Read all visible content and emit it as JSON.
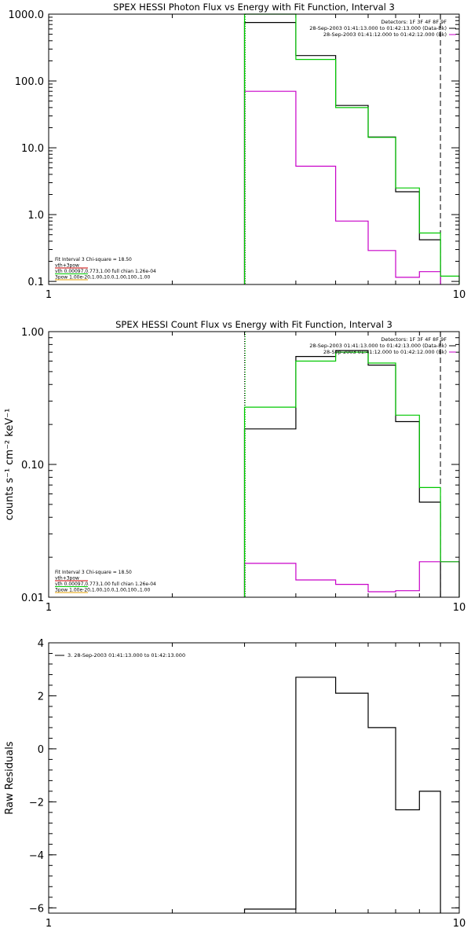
{
  "colors": {
    "black": "#000000",
    "green": "#00c800",
    "magenta": "#c800c8",
    "orange": "#e6a000",
    "red": "#c80000"
  },
  "chart_data": [
    {
      "type": "line",
      "title": "SPEX HESSI Photon Flux vs Energy with Fit Function, Interval 3",
      "xlabel": "",
      "ylabel": "",
      "xscale": "log",
      "yscale": "log",
      "xlim": [
        1,
        10
      ],
      "ylim": [
        0.09,
        1000
      ],
      "x_ticks": [
        "1",
        "10"
      ],
      "y_ticks": [
        {
          "v": 0.1,
          "label": "0.1"
        },
        {
          "v": 1,
          "label": "1.0"
        },
        {
          "v": 10,
          "label": "10.0"
        },
        {
          "v": 100,
          "label": "100.0"
        },
        {
          "v": 1000,
          "label": "1000.0"
        }
      ],
      "vlines": [
        {
          "x": 3.0,
          "style": "dotted",
          "color": "#000000"
        },
        {
          "x": 3.0,
          "style": "dotted",
          "color": "#00c800"
        },
        {
          "x": 9.0,
          "style": "dashed",
          "color": "#000000"
        }
      ],
      "info_lines": [
        "Detectors: 1F 3F 4F 8F 9F",
        "28-Sep-2003 01:41:13.000 to 01:42:13.000 (Data-Bk)",
        "28-Sep-2003 01:41:12.000 to 01:42:12.000 (Bk)"
      ],
      "fit_lines": [
        {
          "text": "Fit Interval 3   Chi-square = 18.50",
          "color": "#000000"
        },
        {
          "text": "vth+3pow",
          "color": "#c80000"
        },
        {
          "text": "vth 0.00097,0.773,1.00  full chian 1.26e-04",
          "color": "#00c800"
        },
        {
          "text": "3pow 1.00e-20,1.00,10.0,1.00,100.,1.00",
          "color": "#e6a000"
        }
      ],
      "series": [
        {
          "name": "Data-Bk",
          "color": "#000000",
          "edges": [
            3,
            4,
            5,
            6,
            7,
            8,
            9
          ],
          "values": [
            750,
            240,
            43,
            14.5,
            2.2,
            0.42
          ]
        },
        {
          "name": "Bk",
          "color": "#c800c8",
          "edges": [
            3,
            4,
            5,
            6,
            7,
            8,
            9
          ],
          "values": [
            70,
            5.3,
            0.8,
            0.29,
            0.115,
            0.14
          ]
        },
        {
          "name": "vth",
          "color": "#00c800",
          "edges": [
            3,
            4,
            5,
            6,
            7,
            8,
            9,
            10
          ],
          "values": [
            1200,
            210,
            40,
            14.3,
            2.5,
            0.53,
            0.12
          ]
        }
      ]
    },
    {
      "type": "line",
      "title": "SPEX HESSI Count Flux vs Energy with Fit Function, Interval 3",
      "xlabel": "",
      "ylabel": "counts s⁻¹ cm⁻² keV⁻¹",
      "xscale": "log",
      "yscale": "log",
      "xlim": [
        1,
        10
      ],
      "ylim": [
        0.01,
        1.0
      ],
      "x_ticks": [
        "1",
        "10"
      ],
      "y_ticks": [
        {
          "v": 0.01,
          "label": "0.01"
        },
        {
          "v": 0.1,
          "label": "0.10"
        },
        {
          "v": 1.0,
          "label": "1.00"
        }
      ],
      "vlines": [
        {
          "x": 3.0,
          "style": "dotted",
          "color": "#000000"
        },
        {
          "x": 3.0,
          "style": "dotted",
          "color": "#00c800"
        },
        {
          "x": 9.0,
          "style": "dashed",
          "color": "#000000"
        }
      ],
      "info_lines": [
        "Detectors: 1F 3F 4F 8F 9F",
        "28-Sep-2003 01:41:13.000 to 01:42:13.000 (Data-Bk)",
        "28-Sep-2003 01:41:12.000 to 01:42:12.000 (Bk)"
      ],
      "fit_lines": [
        {
          "text": "Fit Interval 3   Chi-square = 18.50",
          "color": "#000000"
        },
        {
          "text": "vth+3pow",
          "color": "#c80000"
        },
        {
          "text": "vth 0.00097,0.773,1.00  full chian 1.26e-04",
          "color": "#00c800"
        },
        {
          "text": "3pow 1.00e-20,1.00,10.0,1.00,100.,1.00",
          "color": "#e6a000"
        }
      ],
      "series": [
        {
          "name": "Data-Bk",
          "color": "#000000",
          "edges": [
            3,
            4,
            5,
            6,
            7,
            8,
            9
          ],
          "values": [
            0.185,
            0.65,
            0.72,
            0.56,
            0.21,
            0.052
          ]
        },
        {
          "name": "Bk",
          "color": "#c800c8",
          "edges": [
            3,
            4,
            5,
            6,
            7,
            8,
            9,
            10
          ],
          "values": [
            0.018,
            0.0135,
            0.0125,
            0.011,
            0.0112,
            0.0185,
            0.0185
          ]
        },
        {
          "name": "vth",
          "color": "#00c800",
          "edges": [
            3,
            4,
            5,
            6,
            7,
            8,
            9,
            10
          ],
          "values": [
            0.27,
            0.6,
            0.7,
            0.58,
            0.235,
            0.067,
            0.0185
          ]
        }
      ]
    },
    {
      "type": "line",
      "title": "",
      "xlabel": "",
      "ylabel": "Raw Residuals",
      "xscale": "log",
      "yscale": "linear",
      "xlim": [
        1,
        10
      ],
      "ylim": [
        -6.2,
        4.0
      ],
      "x_ticks": [
        "1",
        "10"
      ],
      "y_ticks": [
        {
          "v": -6,
          "label": "−6"
        },
        {
          "v": -4,
          "label": "−4"
        },
        {
          "v": -2,
          "label": "−2"
        },
        {
          "v": 0,
          "label": "0"
        },
        {
          "v": 2,
          "label": "2"
        },
        {
          "v": 4,
          "label": "4"
        }
      ],
      "legend": "3. 28-Sep-2003 01:41:13.000 to 01:42:13.000",
      "series": [
        {
          "name": "residuals",
          "color": "#000000",
          "edges": [
            3,
            4,
            5,
            6,
            7,
            8,
            9
          ],
          "values": [
            -6.05,
            2.7,
            2.1,
            0.8,
            -2.3,
            -1.6
          ]
        }
      ]
    }
  ]
}
